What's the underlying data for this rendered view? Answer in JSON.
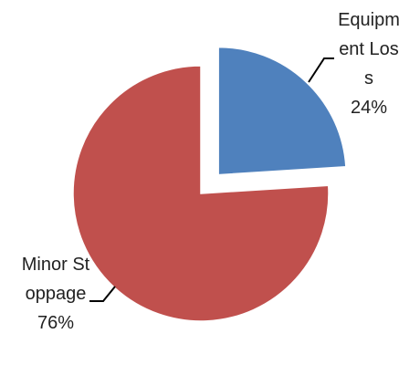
{
  "chart_data": {
    "type": "pie",
    "categories": [
      "Equipment Loss",
      "Minor Stoppage"
    ],
    "values": [
      24,
      76
    ],
    "value_labels": [
      "24%",
      "76%"
    ],
    "colors": [
      "#4f81bd",
      "#c0504d"
    ]
  }
}
